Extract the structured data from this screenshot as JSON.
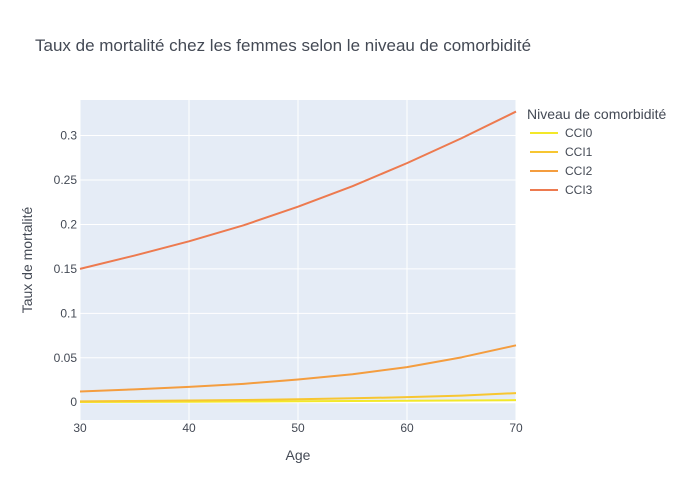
{
  "chart_data": {
    "type": "line",
    "title": "Taux de mortalité chez les femmes selon le niveau de comorbidité",
    "xlabel": "Age",
    "ylabel": "Taux de mortalité",
    "xlim": [
      30,
      70
    ],
    "ylim": [
      -0.02,
      0.34
    ],
    "x_ticks": [
      30,
      40,
      50,
      60,
      70
    ],
    "y_ticks": [
      0,
      0.05,
      0.1,
      0.15,
      0.2,
      0.25,
      0.3
    ],
    "y_tick_labels": [
      "0",
      "0.05",
      "0.1",
      "0.15",
      "0.2",
      "0.25",
      "0.3"
    ],
    "grid": true,
    "plot_background": "#e5ecf6",
    "legend": {
      "title": "Niveau de comorbidité",
      "position": "right"
    },
    "x": [
      30,
      35,
      40,
      45,
      50,
      55,
      60,
      65,
      70
    ],
    "series": [
      {
        "name": "CCI0",
        "color": "#f3e829",
        "values": [
          0.0003,
          0.0004,
          0.0006,
          0.0008,
          0.0011,
          0.0014,
          0.0017,
          0.002,
          0.0023
        ]
      },
      {
        "name": "CCI1",
        "color": "#f7c631",
        "values": [
          0.001,
          0.0014,
          0.0019,
          0.0025,
          0.0033,
          0.0044,
          0.0057,
          0.0074,
          0.0103
        ]
      },
      {
        "name": "CCI2",
        "color": "#f49d3f",
        "values": [
          0.012,
          0.0145,
          0.0172,
          0.0207,
          0.0255,
          0.0315,
          0.0395,
          0.0505,
          0.064
        ]
      },
      {
        "name": "CCI3",
        "color": "#ed7a4f",
        "values": [
          0.15,
          0.165,
          0.181,
          0.199,
          0.22,
          0.243,
          0.269,
          0.297,
          0.327
        ]
      }
    ]
  }
}
